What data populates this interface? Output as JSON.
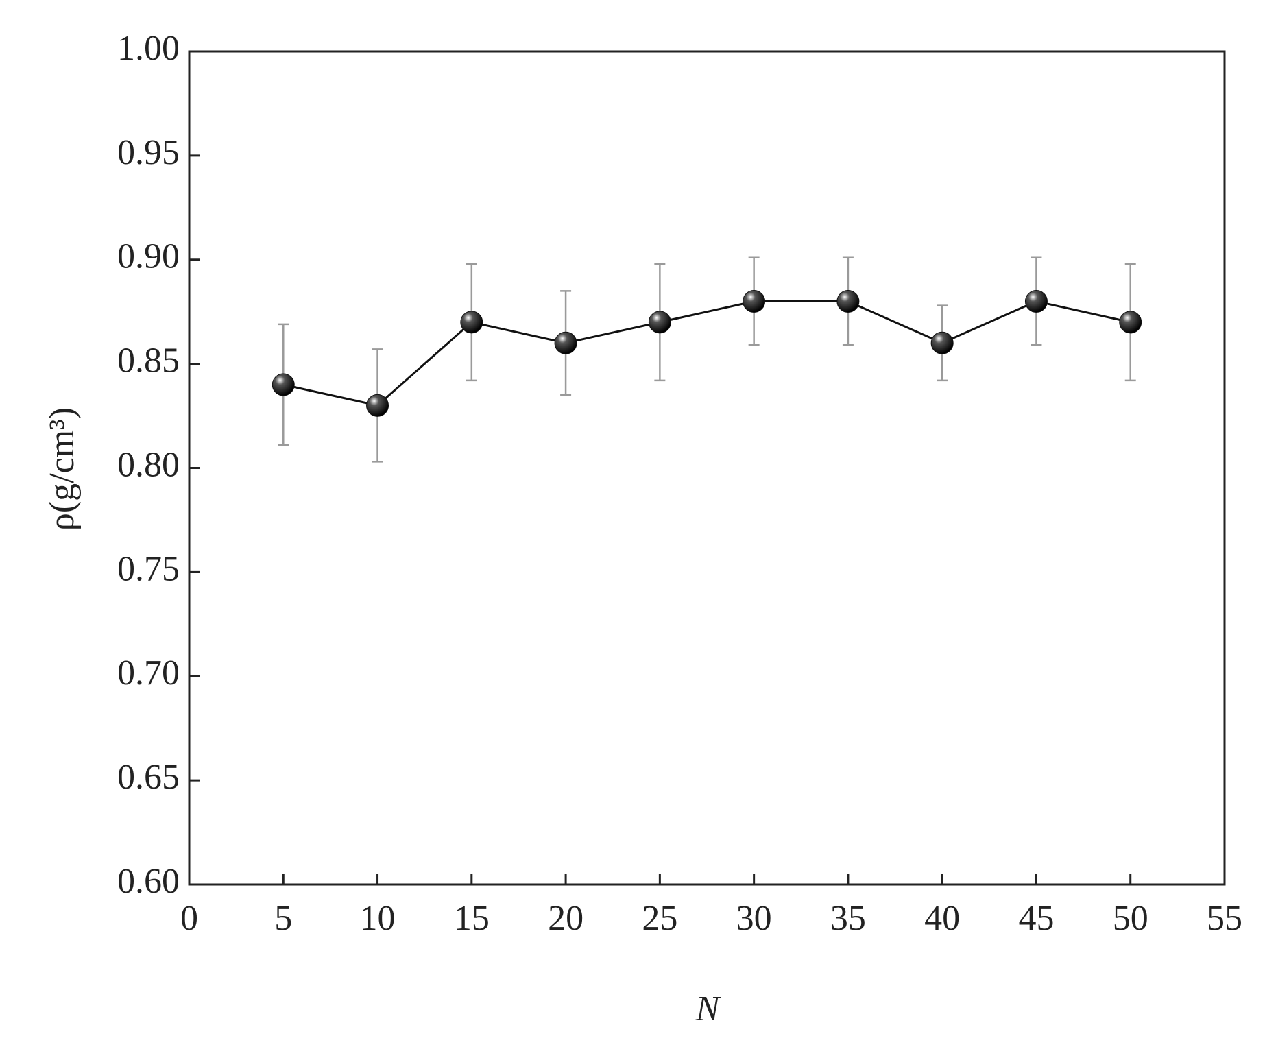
{
  "chart_data": {
    "type": "line",
    "x_label": "N",
    "y_label": "ρ(g/cm³)",
    "x": [
      5,
      10,
      15,
      20,
      25,
      30,
      35,
      40,
      45,
      50
    ],
    "values": [
      0.84,
      0.83,
      0.87,
      0.86,
      0.87,
      0.88,
      0.88,
      0.86,
      0.88,
      0.87
    ],
    "errors": [
      0.029,
      0.027,
      0.028,
      0.025,
      0.028,
      0.021,
      0.021,
      0.018,
      0.021,
      0.028
    ],
    "color": "#111111",
    "error_color": "#9a9a9a",
    "xlim": [
      0,
      55
    ],
    "xticks": [
      0,
      5,
      10,
      15,
      20,
      25,
      30,
      35,
      40,
      45,
      50,
      55
    ],
    "ylim": [
      0.6,
      1.0
    ],
    "yticks": [
      {
        "value": 0.6,
        "label": "0.60"
      },
      0.65,
      {
        "value": 0.7,
        "label": "0.70"
      },
      0.75,
      {
        "value": 0.8,
        "label": "0.80"
      },
      0.85,
      {
        "value": 0.9,
        "label": "0.90"
      },
      0.95,
      {
        "value": 1.0,
        "label": "1.00"
      }
    ],
    "grid": false
  }
}
